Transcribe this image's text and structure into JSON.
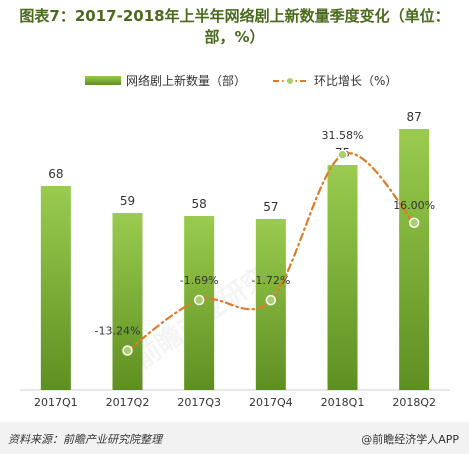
{
  "title": {
    "line1": "图表7：2017-2018年上半年网络剧上新数量季度变化（单位：",
    "line2": "部，%）"
  },
  "legend": {
    "bar_label": "网络剧上新数量（部）",
    "line_label": "环比增长（%）"
  },
  "colors": {
    "bar_top": "#9acb4f",
    "bar_bottom": "#5e8f21",
    "line": "#e07b2a",
    "marker": "#a8d070",
    "title": "#4a6a1e"
  },
  "chart_data": {
    "type": "bar",
    "categories": [
      "2017Q1",
      "2017Q2",
      "2017Q3",
      "2017Q4",
      "2018Q1",
      "2018Q2"
    ],
    "series": [
      {
        "name": "网络剧上新数量（部）",
        "type": "bar",
        "values": [
          68,
          59,
          58,
          57,
          75,
          87
        ]
      },
      {
        "name": "环比增长（%）",
        "type": "line",
        "values": [
          null,
          -13.24,
          -1.69,
          -1.72,
          31.58,
          16.0
        ],
        "labels": [
          "",
          "-13.24%",
          "-1.69%",
          "-1.72%",
          "31.58%",
          "16.00%"
        ]
      }
    ],
    "bar_labels": [
      "68",
      "59",
      "58",
      "57",
      "75",
      "87"
    ],
    "ylim_bar": [
      0,
      100
    ],
    "ylim_line": [
      -20,
      40
    ],
    "grid": false,
    "legend_position": "top"
  },
  "footer": {
    "source": "资料来源：前瞻产业研究院整理",
    "brand": "@前瞻经济学人APP"
  },
  "watermark": {
    "text": "前瞻产业研究院"
  }
}
